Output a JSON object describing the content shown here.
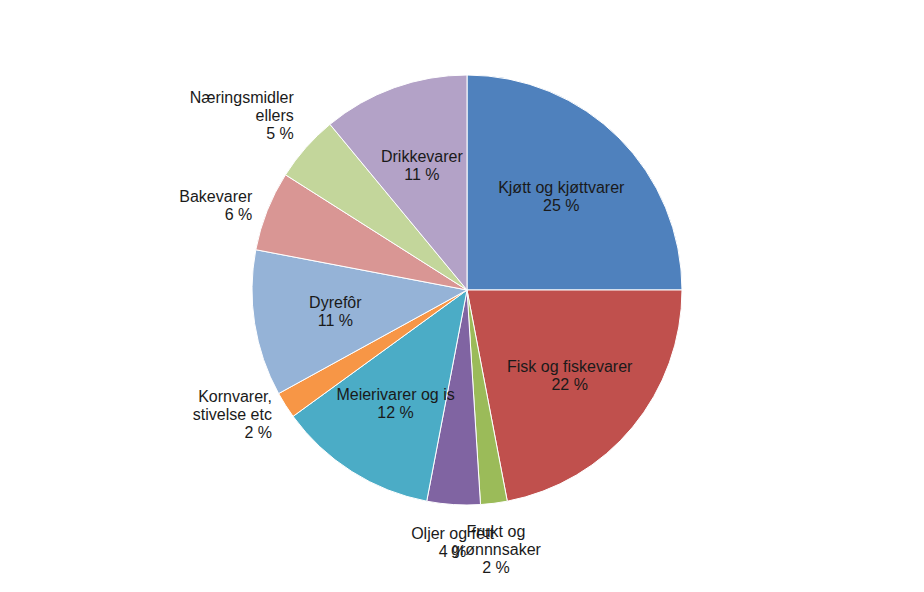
{
  "chart_data": {
    "type": "pie",
    "categories": [
      "Kjøtt og kjøttvarer",
      "Fisk og fiskevarer",
      "Frukt og grønnnsaker",
      "Oljer og fett",
      "Meierivarer og is",
      "Kornvarer, stivelse etc",
      "Dyrefôr",
      "Bakevarer",
      "Næringsmidler ellers",
      "Drikkevarer"
    ],
    "values": [
      25,
      22,
      2,
      4,
      12,
      2,
      11,
      6,
      5,
      11
    ],
    "value_labels": [
      "25 %",
      "22 %",
      "2 %",
      "4 %",
      "12 %",
      "2 %",
      "11 %",
      "6 %",
      "5 %",
      "11 %"
    ],
    "colors": [
      "#4F81BD",
      "#C0504D",
      "#9BBB59",
      "#8064A2",
      "#4BACC6",
      "#F79646",
      "#95B3D7",
      "#D99694",
      "#C3D69B",
      "#B3A2C7"
    ],
    "data_labels": true
  }
}
